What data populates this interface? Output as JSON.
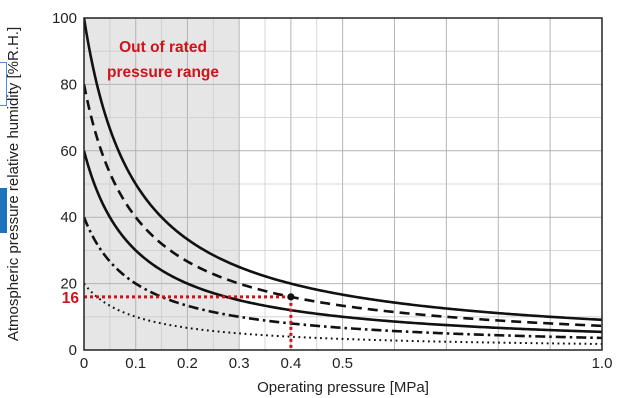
{
  "chart_data": {
    "type": "line",
    "title": "",
    "xlabel": "Operating pressure [MPa]",
    "ylabel": "Atmospheric pressure relative humidity [%R.H.]",
    "xlim": [
      0,
      1.0
    ],
    "ylim": [
      0,
      100
    ],
    "x_ticks": [
      "0",
      "0.1",
      "0.2",
      "0.3",
      "0.4",
      "0.5",
      "1.0"
    ],
    "y_ticks": [
      "0",
      "20",
      "40",
      "60",
      "80",
      "100"
    ],
    "grid": true,
    "shaded_region": {
      "x": [
        0,
        0.3
      ],
      "label_lines": [
        "Out of rated",
        "pressure range"
      ],
      "color": "#e6e6e6",
      "label_color": "#d0121b"
    },
    "series": [
      {
        "style": "solid",
        "x": [
          0,
          0.1,
          0.2,
          0.3,
          0.4,
          0.5,
          1.0
        ],
        "y": [
          100,
          50,
          33.3,
          25,
          20,
          16.7,
          9.1
        ]
      },
      {
        "style": "dashed",
        "x": [
          0,
          0.1,
          0.2,
          0.3,
          0.4,
          0.5,
          1.0
        ],
        "y": [
          80,
          40,
          26.7,
          20,
          16,
          13.3,
          7.3
        ]
      },
      {
        "style": "solid",
        "x": [
          0,
          0.1,
          0.2,
          0.3,
          0.4,
          0.5,
          1.0
        ],
        "y": [
          60,
          30,
          20,
          15,
          12,
          10,
          5.5
        ]
      },
      {
        "style": "dashdot",
        "x": [
          0,
          0.1,
          0.2,
          0.3,
          0.4,
          0.5,
          1.0
        ],
        "y": [
          40,
          20,
          13.3,
          10,
          8,
          6.7,
          3.6
        ]
      },
      {
        "style": "dotted",
        "x": [
          0,
          0.1,
          0.2,
          0.3,
          0.4,
          0.5,
          1.0
        ],
        "y": [
          20,
          10,
          6.7,
          5,
          4,
          3.3,
          1.8
        ]
      }
    ],
    "example_point": {
      "x": 0.4,
      "y": 16,
      "label": "16",
      "color": "#d0121b"
    }
  }
}
